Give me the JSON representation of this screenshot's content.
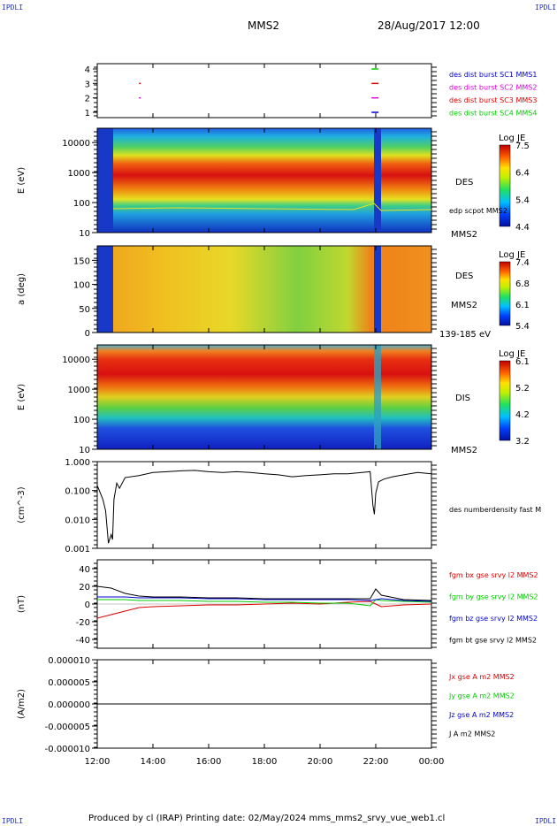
{
  "corner_labels": {
    "top_left": "IPDLI",
    "top_right": "IPDLI",
    "bottom_left": "IPDLI",
    "bottom_right": "IPDLI"
  },
  "header": {
    "spacecraft": "MMS2",
    "date": "28/Aug/2017 12:00"
  },
  "footer": "Produced by cl (IRAP)   Printing date: 02/May/2024   mms_mms2_srvy_vue_web1.cl",
  "colors": {
    "red": "#dd0000",
    "green": "#00cc00",
    "blue": "#0000cc",
    "black": "#000000",
    "magenta": "#dd00dd"
  },
  "chart_data": [
    {
      "type": "scatter",
      "panel": "burst",
      "x_time_labels": [
        "12:00",
        "14:00",
        "16:00",
        "18:00",
        "20:00",
        "22:00",
        "00:00"
      ],
      "yticks": [
        "1",
        "2",
        "3",
        "4"
      ],
      "legend": [
        {
          "text": "des dist burst SC1 MMS1",
          "color": "#0000cc"
        },
        {
          "text": "des dist burst SC2 MMS2",
          "color": "#dd00dd"
        },
        {
          "text": "des dist burst SC3 MMS3",
          "color": "#dd0000"
        },
        {
          "text": "des dist burst SC4 MMS4",
          "color": "#00cc00"
        }
      ],
      "intervals": [
        {
          "sc": 3,
          "start_h": 13.5,
          "end_h": 13.55
        },
        {
          "sc": 2,
          "start_h": 13.5,
          "end_h": 13.55
        },
        {
          "sc": 4,
          "start_h": 21.85,
          "end_h": 22.1
        },
        {
          "sc": 3,
          "start_h": 21.85,
          "end_h": 22.1
        },
        {
          "sc": 2,
          "start_h": 21.85,
          "end_h": 22.1
        },
        {
          "sc": 1,
          "start_h": 21.85,
          "end_h": 22.1
        }
      ]
    },
    {
      "type": "heatmap",
      "panel": "des_energy",
      "ylabel": "E (eV)",
      "yticks": [
        "10",
        "100",
        "1000",
        "10000"
      ],
      "ylim": [
        10,
        30000
      ],
      "label": "DES",
      "sublabel": "MMS2",
      "overlay": "edp scpot MMS2",
      "cbar_title": "Log JE",
      "cbar_ticks": [
        "7.5",
        "6.4",
        "5.4",
        "4.4"
      ]
    },
    {
      "type": "heatmap",
      "panel": "des_pitch",
      "ylabel": "a (deg)",
      "yticks": [
        "0",
        "50",
        "100",
        "150"
      ],
      "ylim": [
        0,
        180
      ],
      "label": "DES",
      "sublabel": "MMS2",
      "energy_range": "139-185 eV",
      "cbar_title": "Log JE",
      "cbar_ticks": [
        "7.4",
        "6.8",
        "6.1",
        "5.4"
      ]
    },
    {
      "type": "heatmap",
      "panel": "dis_energy",
      "ylabel": "E (eV)",
      "yticks": [
        "10",
        "100",
        "1000",
        "10000"
      ],
      "ylim": [
        10,
        30000
      ],
      "label": "DIS",
      "sublabel": "MMS2",
      "cbar_title": "Log JE",
      "cbar_ticks": [
        "6.1",
        "5.2",
        "4.2",
        "3.2"
      ]
    },
    {
      "type": "line",
      "panel": "density",
      "ylabel": "(cm^-3)",
      "yticks": [
        "0.001",
        "0.010",
        "0.100",
        "1.000"
      ],
      "ylim": [
        0.001,
        1.0
      ],
      "series": [
        {
          "name": "des numberdensity fast M",
          "color": "#000000",
          "x": [
            12.0,
            12.2,
            12.3,
            12.4,
            12.5,
            12.55,
            12.6,
            12.7,
            12.8,
            13.0,
            13.5,
            14.0,
            14.5,
            15.0,
            15.5,
            16.0,
            16.5,
            17.0,
            17.5,
            18.0,
            18.5,
            19.0,
            19.5,
            20.0,
            20.5,
            21.0,
            21.5,
            21.8,
            21.9,
            21.95,
            22.0,
            22.1,
            22.3,
            22.6,
            23.0,
            23.5,
            24.0
          ],
          "y": [
            0.15,
            0.05,
            0.02,
            0.0015,
            0.003,
            0.002,
            0.05,
            0.18,
            0.12,
            0.28,
            0.33,
            0.42,
            0.45,
            0.48,
            0.5,
            0.45,
            0.42,
            0.45,
            0.42,
            0.38,
            0.35,
            0.3,
            0.33,
            0.35,
            0.38,
            0.38,
            0.42,
            0.45,
            0.03,
            0.015,
            0.08,
            0.2,
            0.25,
            0.3,
            0.35,
            0.42,
            0.38
          ]
        }
      ]
    },
    {
      "type": "line",
      "panel": "bfield",
      "ylabel": "(nT)",
      "yticks": [
        "-40",
        "-20",
        "0",
        "20",
        "40"
      ],
      "ylim": [
        -50,
        50
      ],
      "x": [
        12.0,
        12.5,
        13.0,
        13.5,
        14.0,
        15.0,
        16.0,
        17.0,
        18.0,
        19.0,
        20.0,
        21.0,
        21.8,
        22.0,
        22.2,
        23.0,
        24.0
      ],
      "series": [
        {
          "name": "fgm bx gse srvy l2 MMS2",
          "color": "#dd0000",
          "values": [
            -16,
            -12,
            -8,
            -4,
            -3,
            -2,
            -1,
            -1,
            0,
            1,
            0,
            2,
            3,
            0,
            -3,
            -1,
            0
          ]
        },
        {
          "name": "fgm by gse srvy l2 MMS2",
          "color": "#00cc00",
          "values": [
            5,
            5,
            5,
            4,
            4,
            4,
            3,
            3,
            2,
            2,
            1,
            1,
            -2,
            5,
            4,
            3,
            2
          ]
        },
        {
          "name": "fgm bz gse srvy l2 MMS2",
          "color": "#0000cc",
          "values": [
            8,
            8,
            8,
            7,
            7,
            7,
            6,
            6,
            5,
            5,
            5,
            5,
            4,
            5,
            6,
            4,
            3
          ]
        },
        {
          "name": "fgm bt gse srvy l2 MMS2",
          "color": "#000000",
          "values": [
            20,
            18,
            12,
            9,
            8,
            8,
            7,
            7,
            6,
            6,
            6,
            6,
            6,
            17,
            10,
            5,
            4
          ]
        }
      ]
    },
    {
      "type": "line",
      "panel": "current",
      "ylabel": "(A/m2)",
      "yticks": [
        "-0.000010",
        "-0.000005",
        "0.000000",
        "0.000005",
        "0.000010"
      ],
      "ylim": [
        -1e-05,
        1e-05
      ],
      "series": [
        {
          "name": "Jx gse A m2 MMS2",
          "color": "#dd0000"
        },
        {
          "name": "Jy gse A m2 MMS2",
          "color": "#00cc00"
        },
        {
          "name": "Jz gse A m2 MMS2",
          "color": "#0000cc"
        },
        {
          "name": "J A m2 MMS2",
          "color": "#000000"
        }
      ],
      "x": [
        12,
        24
      ],
      "y": [
        0,
        0
      ]
    }
  ]
}
